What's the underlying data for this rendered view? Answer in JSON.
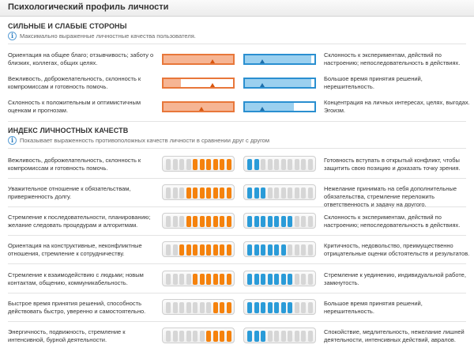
{
  "header": {
    "title": "Психологический профиль личности"
  },
  "strengths": {
    "title": "СИЛЬНЫЕ И СЛАБЫЕ СТОРОНЫ",
    "info": "Максимально выраженные личностные качества пользователя.",
    "rows": [
      {
        "left": "Ориентация на общее благо; отзывчивость; заботу о близких, коллегах, общих целях.",
        "left_level": 1.0,
        "left_marker": 0.7,
        "right": "Склонность к экспериментам, действий по настроению; непоследовательность в действиях.",
        "right_level": 0.95,
        "right_marker": 0.25
      },
      {
        "left": "Вежливость, доброжелательность, склонность к компромиссам и готовность помочь.",
        "left_level": 0.25,
        "left_marker": 0.7,
        "right": "Большое время принятия решений, нерешительность.",
        "right_level": 0.95,
        "right_marker": 0.25
      },
      {
        "left": "Склонность к положительным и оптимистичным оценкам и прогнозам.",
        "left_level": 1.0,
        "left_marker": 0.55,
        "right": "Концентрация на личных интересах, целях, выгодах. Эгоизм.",
        "right_level": 0.7,
        "right_marker": 0.25
      }
    ]
  },
  "index": {
    "title": "ИНДЕКС ЛИЧНОСТНЫХ КАЧЕСТВ",
    "info": "Показывает выраженность противоположных качеств личности в сравнении друг с другом",
    "rows": [
      {
        "left": "Вежливость, доброжелательность, склонность к компромиссам и готовность помочь.",
        "left_on": [
          4,
          5,
          6,
          7,
          8,
          9
        ],
        "right": "Готовность вступать в открытый конфликт, чтобы защитить свою позицию и доказать точку зрения.",
        "right_on": [
          0,
          1
        ]
      },
      {
        "left": "Уважительное отношение к обязательствам, приверженность долгу.",
        "left_on": [
          3,
          4,
          5,
          6,
          7,
          8,
          9
        ],
        "right": "Нежелание принимать на себя дополнительные обязательства, стремление переложить ответственность и задачу на другого.",
        "right_on": [
          0,
          1,
          2
        ]
      },
      {
        "left": "Стремление к последовательности, планированию; желание следовать процедурам и алгоритмам.",
        "left_on": [
          3,
          4,
          5,
          6,
          7,
          8,
          9
        ],
        "right": "Склонность к экспериментам, действий по настроению; непоследовательность в действиях.",
        "right_on": [
          0,
          1,
          2,
          3,
          4,
          5,
          6
        ]
      },
      {
        "left": "Ориентация на конструктивные, неконфликтные отношения, стремление к сотрудничеству.",
        "left_on": [
          2,
          3,
          4,
          5,
          6,
          7,
          8,
          9
        ],
        "right": "Критичность, недовольство, преимущественно отрицательные оценки обстоятельств и результатов.",
        "right_on": [
          0,
          1,
          2,
          3,
          4,
          5
        ]
      },
      {
        "left": "Стремление к взаимодействию с людьми; новым контактам, общению, коммуникабельность.",
        "left_on": [
          4,
          5,
          6,
          7,
          8,
          9
        ],
        "right": "Стремление к уединению, индивидуальной работе, замкнутость.",
        "right_on": [
          0,
          1,
          2,
          3,
          4,
          5,
          6
        ]
      },
      {
        "left": "Быстрое время принятия решений, способность действовать быстро, уверенно и самостоятельно.",
        "left_on": [
          7,
          8,
          9
        ],
        "right": "Большое время принятия решений, нерешительность.",
        "right_on": [
          0,
          1,
          2,
          3,
          4,
          5,
          6
        ]
      },
      {
        "left": "Энергичность, подвижность, стремление к интенсивной, бурной деятельности.",
        "left_on": [
          6,
          7,
          8,
          9
        ],
        "right": "Спокойствие, медлительность, нежелание лишней деятельности, интенсивных действий, авралов.",
        "right_on": [
          0,
          1,
          2
        ]
      }
    ]
  },
  "colors": {
    "orange": "#f5820d",
    "blue": "#2a9bd8"
  },
  "icons": {
    "info": "info-icon"
  }
}
